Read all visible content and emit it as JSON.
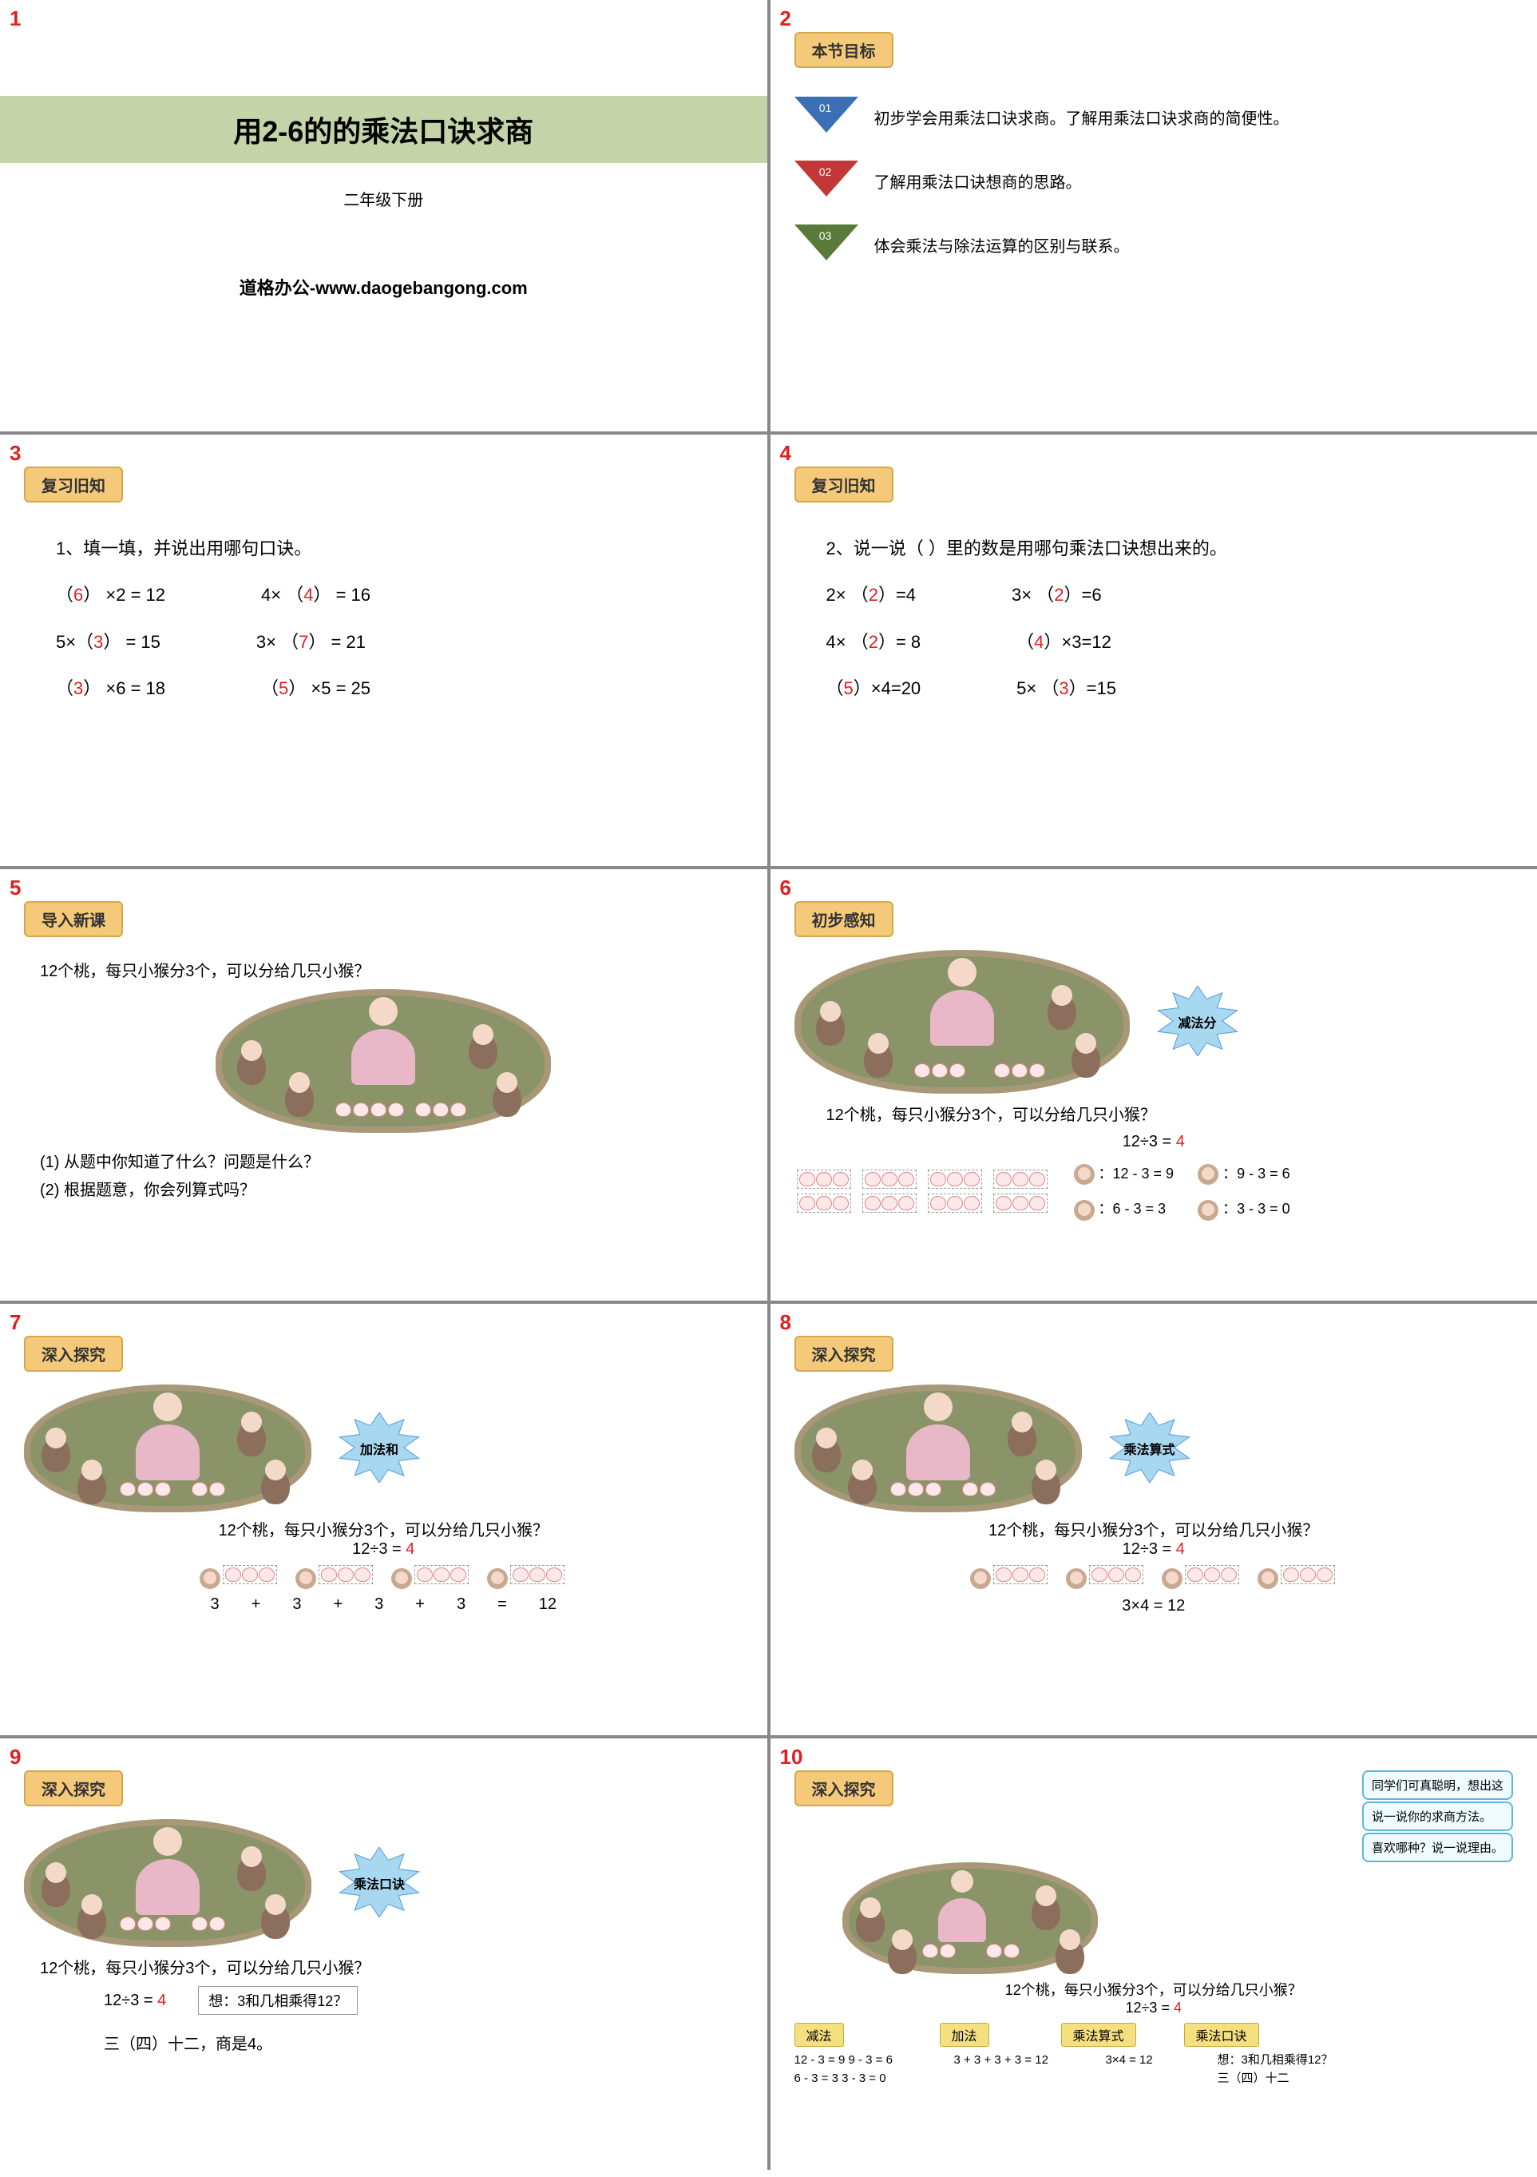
{
  "slides": {
    "s1": {
      "num": "1",
      "title": "用2-6的的乘法口诀求商",
      "subtitle": "二年级下册",
      "footer": "道格办公-www.daogebangong.com",
      "title_bg": "#c5d4a8"
    },
    "s2": {
      "num": "2",
      "badge": "本节目标",
      "goals": [
        {
          "n": "01",
          "text": "初步学会用乘法口诀求商。了解用乘法口诀求商的简便性。",
          "color": "#3b6fb5"
        },
        {
          "n": "02",
          "text": "了解用乘法口诀想商的思路。",
          "color": "#c23838"
        },
        {
          "n": "03",
          "text": "体会乘法与除法运算的区别与联系。",
          "color": "#5a7a3a"
        }
      ]
    },
    "s3": {
      "num": "3",
      "badge": "复习旧知",
      "intro": "1、填一填，并说出用哪句口诀。",
      "rows": [
        [
          {
            "pre": "（",
            "ans": "6",
            "post": "） ×2 = 12"
          },
          {
            "pre": "4× （",
            "ans": "4",
            "post": "） = 16"
          }
        ],
        [
          {
            "pre": "5×（",
            "ans": "3",
            "post": "） = 15"
          },
          {
            "pre": "3× （",
            "ans": "7",
            "post": "） = 21"
          }
        ],
        [
          {
            "pre": "（",
            "ans": "3",
            "post": "） ×6 = 18"
          },
          {
            "pre": "（",
            "ans": "5",
            "post": "） ×5 = 25"
          }
        ]
      ]
    },
    "s4": {
      "num": "4",
      "badge": "复习旧知",
      "intro": "2、说一说（  ）里的数是用哪句乘法口诀想出来的。",
      "rows": [
        [
          {
            "pre": "2× （",
            "ans": "2",
            "post": "）=4"
          },
          {
            "pre": "3× （",
            "ans": "2",
            "post": "）=6"
          }
        ],
        [
          {
            "pre": "4× （",
            "ans": "2",
            "post": "）= 8"
          },
          {
            "pre": "（",
            "ans": "4",
            "post": "）×3=12"
          }
        ],
        [
          {
            "pre": "（",
            "ans": "5",
            "post": "）×4=20"
          },
          {
            "pre": "5× （",
            "ans": "3",
            "post": "）=15"
          }
        ]
      ]
    },
    "s5": {
      "num": "5",
      "badge": "导入新课",
      "question": "12个桃，每只小猴分3个，可以分给几只小猴？",
      "q1": "(1) 从题中你知道了什么？问题是什么？",
      "q2": "(2) 根据题意，你会列算式吗？"
    },
    "s6": {
      "num": "6",
      "badge": "初步感知",
      "burst": "减法分",
      "burst_color": "#5b9fe0",
      "question": "12个桃，每只小猴分3个，可以分给几只小猴？",
      "eq": "12÷3 =",
      "ans": "4",
      "steps": [
        "：12 - 3 = 9",
        "：9 - 3 = 6",
        "：6 - 3 = 3",
        "：3 - 3 = 0"
      ]
    },
    "s7": {
      "num": "7",
      "badge": "深入探究",
      "burst": "加法和",
      "burst_color": "#5b9fe0",
      "question": "12个桃，每只小猴分3个，可以分给几只小猴？",
      "eq": "12÷3 =",
      "ans": "4",
      "addition": [
        "3",
        "+",
        "3",
        "+",
        "3",
        "+",
        "3",
        "=",
        "12"
      ]
    },
    "s8": {
      "num": "8",
      "badge": "深入探究",
      "burst": "乘法算式",
      "burst_color": "#5b9fe0",
      "question": "12个桃，每只小猴分3个，可以分给几只小猴？",
      "eq": "12÷3 =",
      "ans": "4",
      "mult": "3×4 = 12"
    },
    "s9": {
      "num": "9",
      "badge": "深入探究",
      "burst": "乘法口诀",
      "burst_color": "#5b9fe0",
      "question": "12个桃，每只小猴分3个，可以分给几只小猴？",
      "eq": "12÷3 =",
      "ans": "4",
      "think": "想：3和几相乘得12？",
      "result": "三（四）十二，商是4。"
    },
    "s10": {
      "num": "10",
      "badge": "深入探究",
      "speech1": "同学们可真聪明，想出这",
      "speech2": "说一说你的求商方法。",
      "speech3": "喜欢哪种？说一说理由。",
      "question": "12个桃，每只小猴分3个，可以分给几只小猴？",
      "eq": "12÷3 =",
      "ans": "4",
      "methods": [
        {
          "name": "减法",
          "lines": [
            "12 - 3 = 9  9 - 3 = 6",
            "6 - 3 = 3  3 - 3 = 0"
          ]
        },
        {
          "name": "加法",
          "lines": [
            "3 + 3 + 3 + 3 = 12"
          ]
        },
        {
          "name": "乘法算式",
          "lines": [
            "3×4 = 12"
          ]
        },
        {
          "name": "乘法口诀",
          "lines": [
            "想：3和几相乘得12？",
            "三（四）十二"
          ]
        }
      ]
    }
  }
}
